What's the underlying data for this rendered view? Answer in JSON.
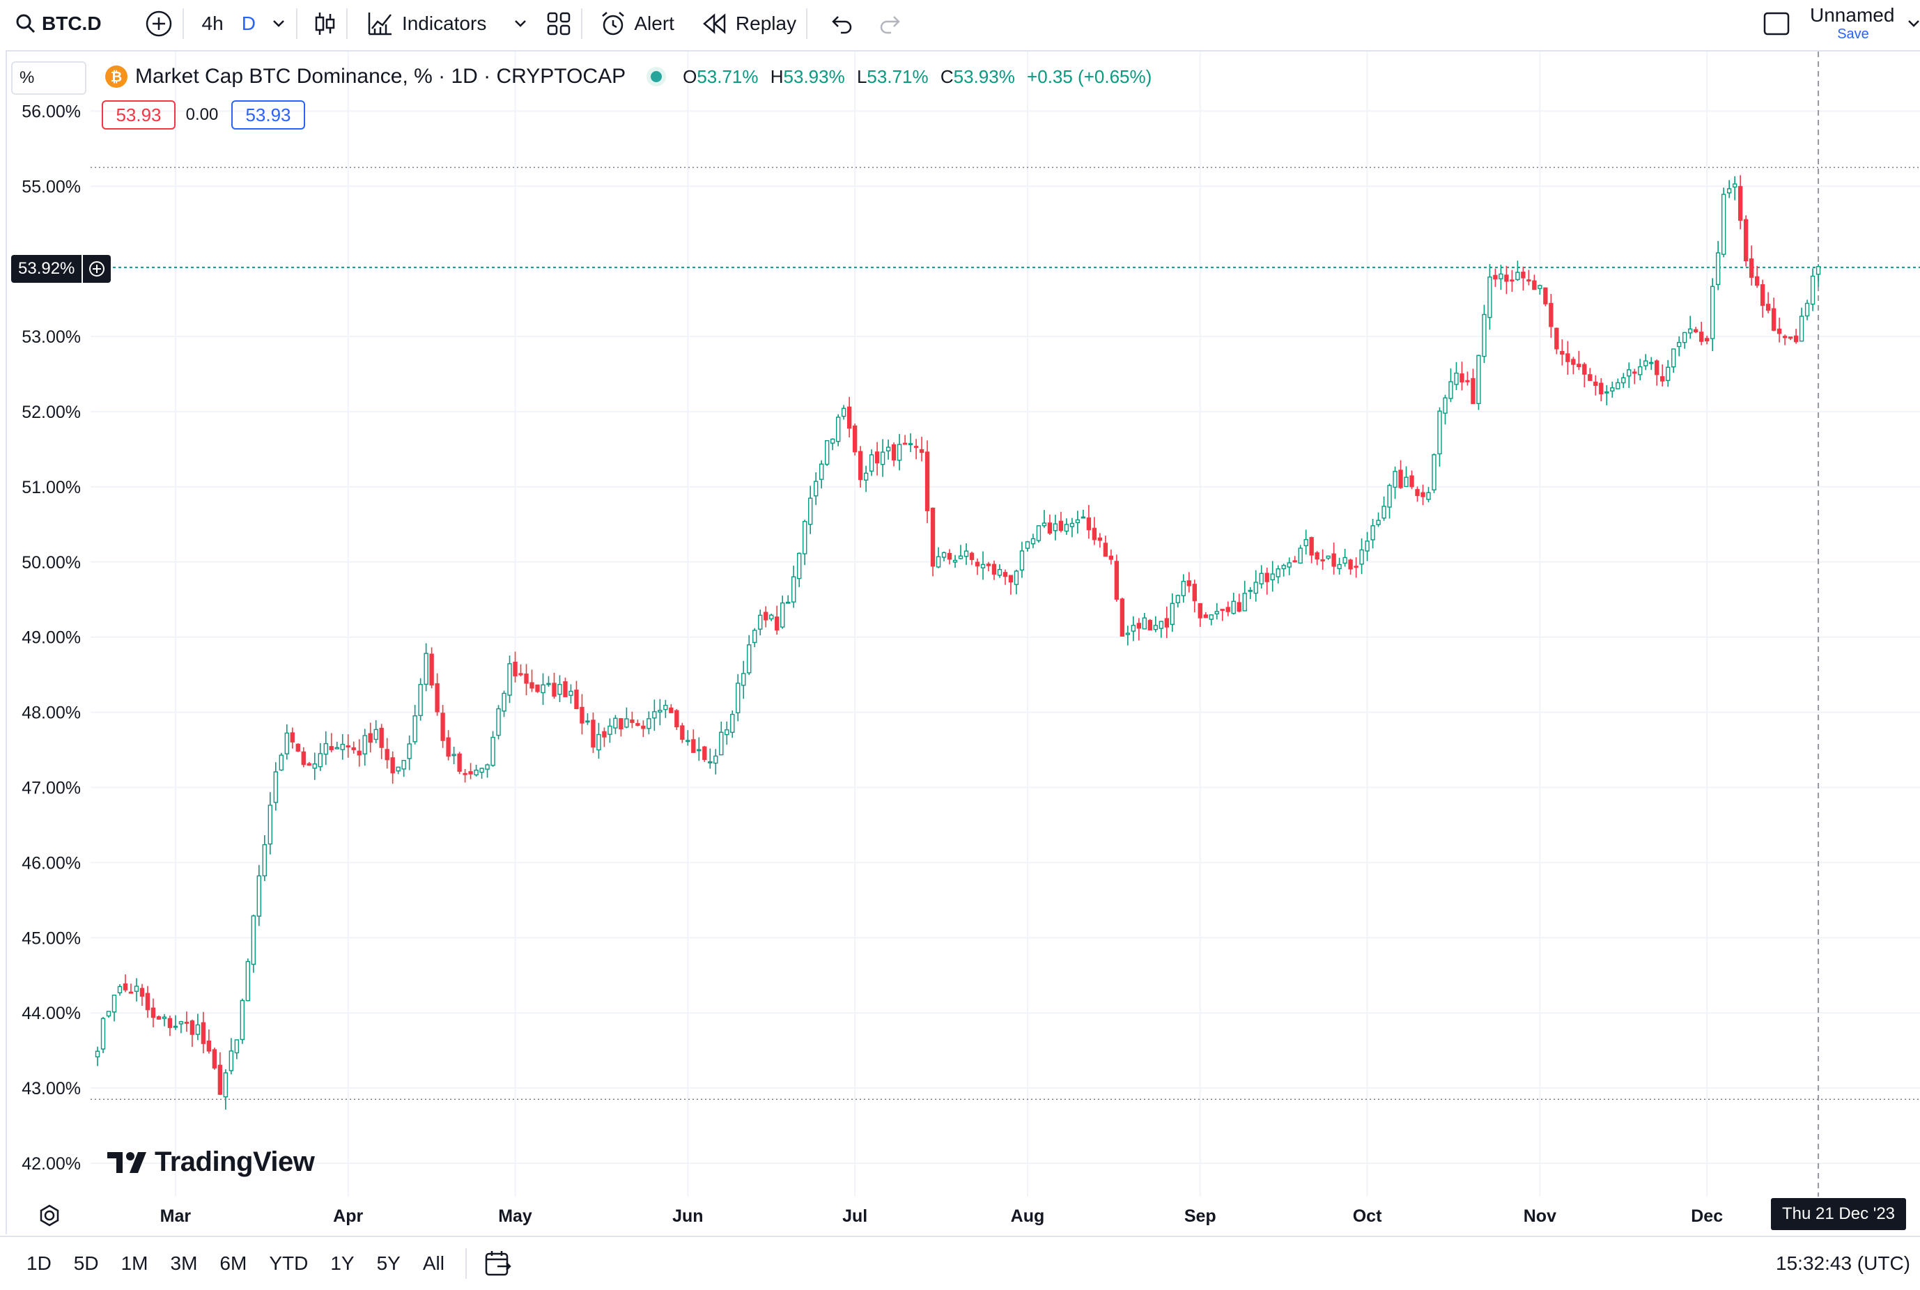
{
  "toolbar": {
    "symbol": "BTC.D",
    "interval_4h": "4h",
    "interval_d": "D",
    "indicators_label": "Indicators",
    "alert_label": "Alert",
    "replay_label": "Replay",
    "layout_name": "Unnamed",
    "save_label": "Save"
  },
  "legend": {
    "title": "Market Cap BTC Dominance, % · 1D · CRYPTOCAP",
    "o_label": "O",
    "o": "53.71%",
    "h_label": "H",
    "h": "53.93%",
    "l_label": "L",
    "l": "53.71%",
    "c_label": "C",
    "c": "53.93%",
    "change": "+0.35 (+0.65%)",
    "sell": "53.93",
    "spread": "0.00",
    "buy": "53.93"
  },
  "scale_mode": "%",
  "price_label": "53.92%",
  "crosshair_date": "Thu 21 Dec '23",
  "watermark": "TradingView",
  "bottom": {
    "ranges": [
      "1D",
      "5D",
      "1M",
      "3M",
      "6M",
      "YTD",
      "1Y",
      "5Y",
      "All"
    ],
    "time": "15:32:43 (UTC)"
  },
  "colors": {
    "up": "#089981",
    "down": "#f23645",
    "accent": "#2962ff",
    "grid": "#f0f3fa"
  },
  "chart_data": {
    "type": "candlestick",
    "title": "Market Cap BTC Dominance, % · 1D · CRYPTOCAP",
    "y_ticks": [
      "56.00%",
      "55.00%",
      "53.00%",
      "52.00%",
      "51.00%",
      "50.00%",
      "49.00%",
      "48.00%",
      "47.00%",
      "46.00%",
      "45.00%",
      "44.00%",
      "43.00%",
      "42.00%"
    ],
    "y_tick_values": [
      56,
      55,
      53,
      52,
      51,
      50,
      49,
      48,
      47,
      46,
      45,
      44,
      43,
      42
    ],
    "x_ticks": [
      "Mar",
      "Apr",
      "May",
      "Jun",
      "Jul",
      "Aug",
      "Sep",
      "Oct",
      "Nov",
      "Dec"
    ],
    "x_tick_dates": [
      "2023-03-01",
      "2023-04-01",
      "2023-05-01",
      "2023-06-01",
      "2023-07-01",
      "2023-08-01",
      "2023-09-01",
      "2023-10-01",
      "2023-11-01",
      "2023-12-01"
    ],
    "ylim": [
      41.7,
      56.3
    ],
    "xlim": [
      "2023-02-14",
      "2023-12-31"
    ],
    "last_price": 53.92,
    "high_line": 55.25,
    "low_line": 42.85,
    "crosshair_x": "2023-12-21",
    "anchor_closes": [
      [
        "2023-02-15",
        43.6
      ],
      [
        "2023-02-18",
        44.3
      ],
      [
        "2023-02-22",
        44.3
      ],
      [
        "2023-02-25",
        43.9
      ],
      [
        "2023-03-05",
        43.8
      ],
      [
        "2023-03-09",
        43.0
      ],
      [
        "2023-03-12",
        43.6
      ],
      [
        "2023-03-15",
        45.2
      ],
      [
        "2023-03-18",
        46.8
      ],
      [
        "2023-03-21",
        47.8
      ],
      [
        "2023-03-25",
        47.2
      ],
      [
        "2023-03-29",
        47.6
      ],
      [
        "2023-04-03",
        47.5
      ],
      [
        "2023-04-06",
        47.8
      ],
      [
        "2023-04-09",
        47.1
      ],
      [
        "2023-04-12",
        47.6
      ],
      [
        "2023-04-15",
        48.8
      ],
      [
        "2023-04-18",
        47.6
      ],
      [
        "2023-04-22",
        47.1
      ],
      [
        "2023-04-26",
        47.3
      ],
      [
        "2023-04-30",
        48.6
      ],
      [
        "2023-05-05",
        48.3
      ],
      [
        "2023-05-11",
        48.3
      ],
      [
        "2023-05-15",
        47.6
      ],
      [
        "2023-05-19",
        47.9
      ],
      [
        "2023-05-24",
        47.7
      ],
      [
        "2023-05-28",
        48.2
      ],
      [
        "2023-06-01",
        47.6
      ],
      [
        "2023-06-05",
        47.3
      ],
      [
        "2023-06-09",
        48.0
      ],
      [
        "2023-06-13",
        49.2
      ],
      [
        "2023-06-17",
        49.2
      ],
      [
        "2023-06-20",
        49.7
      ],
      [
        "2023-06-23",
        50.9
      ],
      [
        "2023-06-26",
        51.6
      ],
      [
        "2023-06-29",
        52.0
      ],
      [
        "2023-07-02",
        51.2
      ],
      [
        "2023-07-05",
        51.4
      ],
      [
        "2023-07-10",
        51.5
      ],
      [
        "2023-07-13",
        51.4
      ],
      [
        "2023-07-15",
        50.0
      ],
      [
        "2023-07-20",
        50.1
      ],
      [
        "2023-07-25",
        49.9
      ],
      [
        "2023-07-29",
        49.8
      ],
      [
        "2023-08-03",
        50.4
      ],
      [
        "2023-08-07",
        50.5
      ],
      [
        "2023-08-11",
        50.5
      ],
      [
        "2023-08-14",
        50.3
      ],
      [
        "2023-08-16",
        50.0
      ],
      [
        "2023-08-18",
        49.0
      ],
      [
        "2023-08-22",
        49.2
      ],
      [
        "2023-08-26",
        49.2
      ],
      [
        "2023-08-29",
        49.8
      ],
      [
        "2023-09-02",
        49.2
      ],
      [
        "2023-09-06",
        49.3
      ],
      [
        "2023-09-10",
        49.6
      ],
      [
        "2023-09-15",
        50.0
      ],
      [
        "2023-09-20",
        50.2
      ],
      [
        "2023-09-25",
        50.0
      ],
      [
        "2023-09-29",
        49.9
      ],
      [
        "2023-10-02",
        50.5
      ],
      [
        "2023-10-06",
        51.1
      ],
      [
        "2023-10-09",
        51.0
      ],
      [
        "2023-10-12",
        50.9
      ],
      [
        "2023-10-14",
        52.1
      ],
      [
        "2023-10-17",
        52.5
      ],
      [
        "2023-10-20",
        52.2
      ],
      [
        "2023-10-23",
        53.9
      ],
      [
        "2023-10-27",
        53.8
      ],
      [
        "2023-11-01",
        53.6
      ],
      [
        "2023-11-04",
        52.8
      ],
      [
        "2023-11-08",
        52.6
      ],
      [
        "2023-11-12",
        52.2
      ],
      [
        "2023-11-15",
        52.3
      ],
      [
        "2023-11-19",
        52.6
      ],
      [
        "2023-11-23",
        52.5
      ],
      [
        "2023-11-27",
        53.0
      ],
      [
        "2023-12-01",
        53.0
      ],
      [
        "2023-12-04",
        54.8
      ],
      [
        "2023-12-06",
        55.0
      ],
      [
        "2023-12-08",
        54.0
      ],
      [
        "2023-12-11",
        53.4
      ],
      [
        "2023-12-14",
        53.0
      ],
      [
        "2023-12-17",
        53.0
      ],
      [
        "2023-12-19",
        53.5
      ],
      [
        "2023-12-21",
        53.93
      ]
    ]
  }
}
